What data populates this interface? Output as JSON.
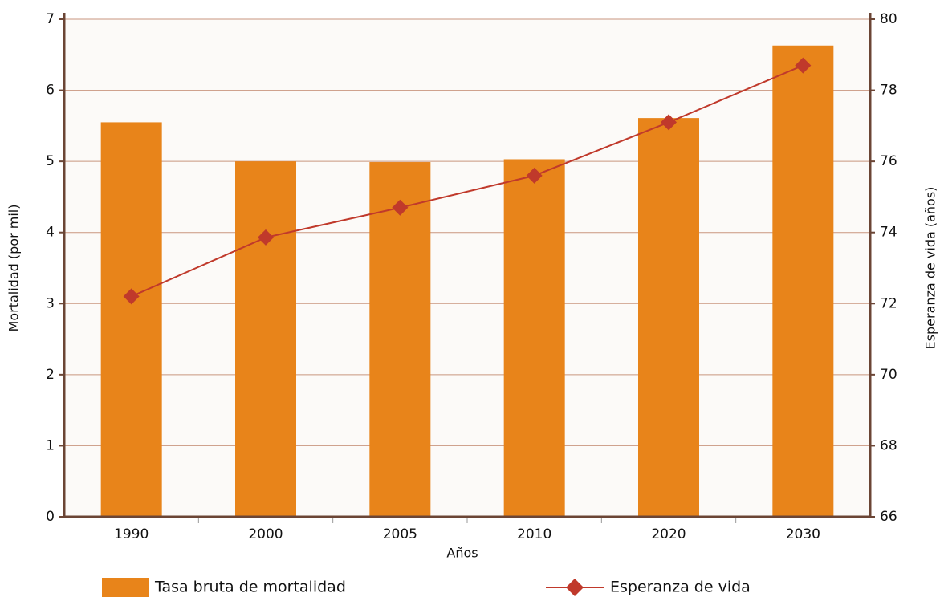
{
  "chart_data": {
    "type": "bar",
    "categories": [
      "1990",
      "2000",
      "2005",
      "2010",
      "2020",
      "2030"
    ],
    "series": [
      {
        "name": "Tasa bruta de mortalidad",
        "type": "bar",
        "color": "#e8841a",
        "values": [
          5.55,
          5.0,
          4.99,
          5.03,
          5.61,
          6.63
        ]
      },
      {
        "name": "Esperanza de vida",
        "type": "line",
        "axis": "y2",
        "color": "#c0392b",
        "values": [
          72.2,
          73.86,
          74.7,
          75.6,
          77.1,
          78.7
        ]
      }
    ],
    "xlabel": "Años",
    "ylabel": "Mortalidad (por mil)",
    "y2label": "Esperanza de vida (años)",
    "ylim": [
      0,
      7
    ],
    "yticks": [
      0,
      1,
      2,
      3,
      4,
      5,
      6,
      7
    ],
    "y2lim": [
      66,
      80
    ],
    "y2ticks": [
      66,
      68,
      70,
      72,
      74,
      76,
      78,
      80
    ],
    "grid": true,
    "legend": "bottom"
  }
}
